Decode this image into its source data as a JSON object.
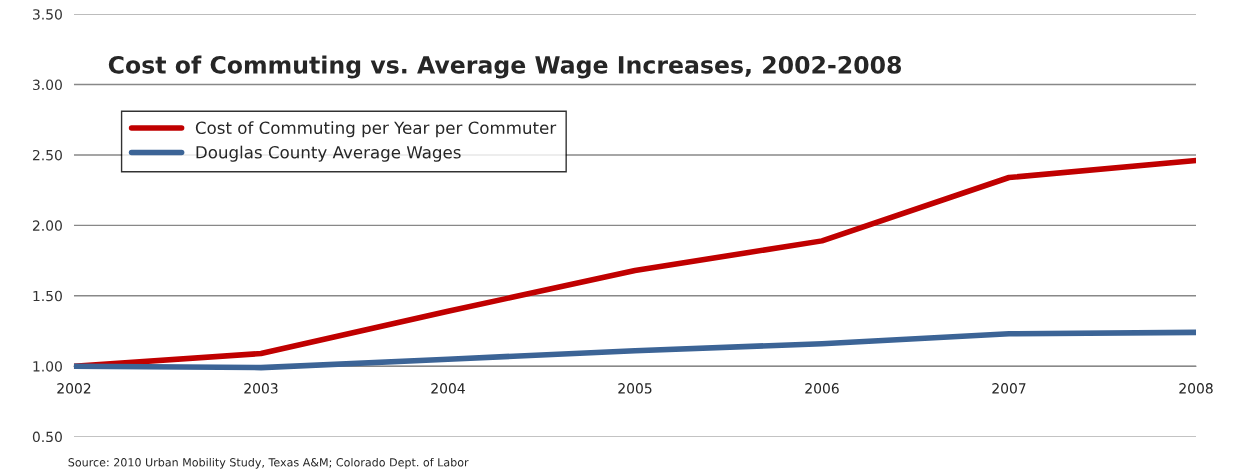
{
  "chart_data": {
    "type": "line",
    "title": "Cost of Commuting vs. Average Wage Increases, 2002-2008",
    "categories": [
      "2002",
      "2003",
      "2004",
      "2005",
      "2006",
      "2007",
      "2008"
    ],
    "series": [
      {
        "name": "Cost of Commuting per Year per Commuter",
        "color": "#c00000",
        "values": [
          1.0,
          1.09,
          1.39,
          1.68,
          1.89,
          2.34,
          2.46
        ]
      },
      {
        "name": "Douglas County Average Wages",
        "color": "#3c6496",
        "values": [
          1.0,
          0.99,
          1.05,
          1.11,
          1.16,
          1.23,
          1.24
        ]
      }
    ],
    "ylim": [
      0.5,
      3.5
    ],
    "yticks": [
      {
        "value": 0.5,
        "label": "0.50"
      },
      {
        "value": 1.0,
        "label": "1.00"
      },
      {
        "value": 1.5,
        "label": "1.50"
      },
      {
        "value": 2.0,
        "label": "2.00"
      },
      {
        "value": 2.5,
        "label": "2.50"
      },
      {
        "value": 3.0,
        "label": "3.00"
      },
      {
        "value": 3.5,
        "label": "3.50"
      }
    ],
    "grid": "y",
    "legend": "top left",
    "marker": "none",
    "line_style": "solid",
    "annotations": [
      "Source: 2010 Urban Mobility Study, Texas A&M; Colorado Dept. of Labor"
    ]
  }
}
